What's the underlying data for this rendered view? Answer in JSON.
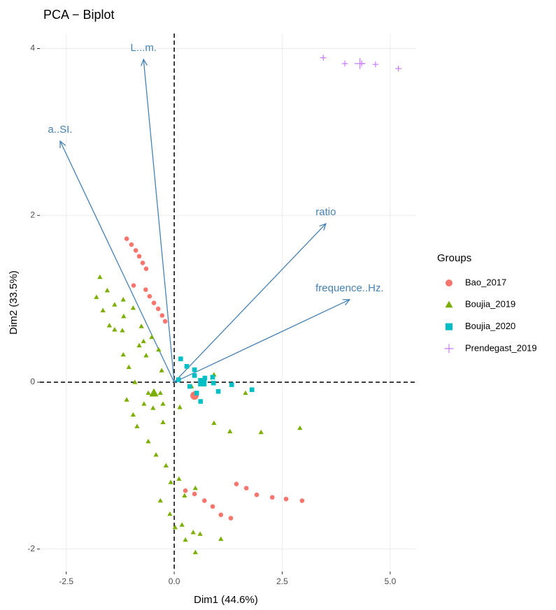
{
  "chart_data": {
    "type": "scatter",
    "title": "PCA − Biplot",
    "x_label": "Dim1 (44.6%)",
    "y_label": "Dim2 (33.5%)",
    "legend_title": "Groups",
    "xlim": [
      -3.11,
      5.6
    ],
    "ylim": [
      -2.27,
      4.18
    ],
    "xticks": [
      -2.5,
      {
        "value": 0,
        "label": "0.0"
      },
      2.5,
      {
        "value": 5,
        "label": "5.0"
      }
    ],
    "yticks": [
      -2,
      0,
      2,
      4
    ],
    "grid": true,
    "hlines": [
      0
    ],
    "vlines": [
      0
    ],
    "legend": "right",
    "series": [
      {
        "name": "Bao_2017",
        "color": "#F8766D",
        "shape": "circle",
        "x": [
          -1.1,
          -0.99,
          -0.89,
          -0.81,
          -0.73,
          -0.65,
          -0.94,
          -0.66,
          -0.57,
          -0.47,
          -0.37,
          -0.28,
          -0.21,
          0.26,
          0.47,
          0.7,
          0.89,
          1.08,
          1.31,
          1.44,
          1.67,
          1.91,
          2.27,
          2.59,
          2.96
        ],
        "y": [
          1.72,
          1.65,
          1.58,
          1.51,
          1.43,
          1.36,
          1.16,
          1.11,
          1.03,
          0.95,
          0.88,
          0.8,
          0.73,
          -1.3,
          -1.34,
          -1.42,
          -1.49,
          -1.59,
          -1.63,
          -1.22,
          -1.27,
          -1.35,
          -1.38,
          -1.4,
          -1.42
        ],
        "centroid": [
          0.47,
          -0.16
        ]
      },
      {
        "name": "Boujia_2019",
        "color": "#7CAE00",
        "shape": "triangle",
        "x": [
          -1.72,
          -1.8,
          -1.55,
          -1.65,
          -1.38,
          -1.18,
          -1.5,
          -1.17,
          -0.95,
          -1.38,
          -1.18,
          -1.05,
          -0.71,
          -0.81,
          -0.52,
          -0.76,
          -1.2,
          -0.65,
          -0.36,
          -0.29,
          -0.91,
          -0.5,
          -0.6,
          -0.32,
          -1.1,
          -0.7,
          -0.95,
          -0.49,
          -0.26,
          -0.86,
          -0.6,
          -0.26,
          -0.42,
          -0.19,
          -0.08,
          0.11,
          0.49,
          -0.32,
          -0.1,
          0.18,
          0.02,
          0.44,
          0.26,
          0.92,
          1.29,
          2.01,
          2.91,
          1.65,
          0.13,
          0.4,
          0.92,
          0.6,
          1.08,
          0.49,
          0.24
        ],
        "y": [
          1.26,
          1.02,
          1.1,
          0.86,
          0.93,
          0.99,
          0.68,
          0.79,
          0.89,
          0.63,
          0.33,
          0.18,
          0.49,
          0.44,
          0.54,
          0.67,
          0.62,
          0.32,
          0.39,
          0.14,
          0.0,
          -0.15,
          -0.13,
          -0.13,
          -0.21,
          -0.26,
          -0.39,
          -0.31,
          -0.26,
          -0.53,
          -0.71,
          -0.48,
          -0.87,
          -1.0,
          -1.2,
          -1.16,
          -1.27,
          -1.42,
          -1.58,
          -1.71,
          -1.74,
          -1.8,
          -1.89,
          -0.49,
          -0.59,
          -0.6,
          -0.55,
          -0.13,
          -0.3,
          -0.05,
          0.09,
          -1.82,
          -1.88,
          -2.04,
          -1.36
        ],
        "centroid": [
          -0.47,
          -0.13
        ]
      },
      {
        "name": "Boujia_2020",
        "color": "#00BFC4",
        "shape": "square",
        "x": [
          0.15,
          0.29,
          0.47,
          0.47,
          0.1,
          0.36,
          0.52,
          0.61,
          0.61,
          0.71,
          0.89,
          0.66,
          0.91,
          1.02,
          1.33,
          1.8
        ],
        "y": [
          0.28,
          0.19,
          0.15,
          0.08,
          0.03,
          -0.05,
          -0.13,
          -0.23,
          0.02,
          0.05,
          0.06,
          -0.01,
          -0.01,
          -0.11,
          -0.03,
          -0.09
        ],
        "centroid": [
          0.65,
          0.0
        ]
      },
      {
        "name": "Prendegast_2019",
        "color": "#C77CFF",
        "shape": "plus",
        "x": [
          3.45,
          3.95,
          4.34,
          4.66,
          5.19
        ],
        "y": [
          3.89,
          3.82,
          3.82,
          3.81,
          3.76
        ],
        "centroid": [
          4.3,
          3.82
        ]
      }
    ],
    "arrow_color": "#4682B4",
    "variables": [
      {
        "name": "L...m.",
        "x": -0.71,
        "y": 3.87
      },
      {
        "name": "a..SI.",
        "x": -2.64,
        "y": 2.89
      },
      {
        "name": "ratio",
        "x": 3.51,
        "y": 1.9
      },
      {
        "name": "frequence..Hz.",
        "x": 4.06,
        "y": 0.99
      }
    ]
  }
}
